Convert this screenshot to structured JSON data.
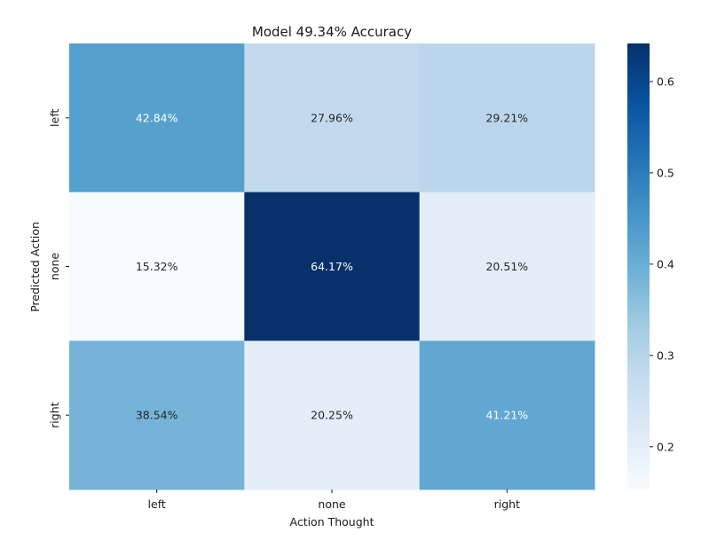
{
  "chart_data": {
    "type": "heatmap",
    "title": "Model 49.34% Accuracy",
    "xlabel": "Action Thought",
    "ylabel": "Predicted Action",
    "x_categories": [
      "left",
      "none",
      "right"
    ],
    "y_categories": [
      "left",
      "none",
      "right"
    ],
    "values": [
      [
        0.4284,
        0.2796,
        0.2921
      ],
      [
        0.1532,
        0.6417,
        0.2051
      ],
      [
        0.3854,
        0.2025,
        0.4121
      ]
    ],
    "cell_labels": [
      [
        "42.84%",
        "27.96%",
        "29.21%"
      ],
      [
        "15.32%",
        "64.17%",
        "20.51%"
      ],
      [
        "38.54%",
        "20.25%",
        "41.21%"
      ]
    ],
    "colormap": "Blues",
    "colorbar_range": [
      0.1532,
      0.6417
    ],
    "colorbar_ticks": [
      0.2,
      0.3,
      0.4,
      0.5,
      0.6
    ],
    "colorbar_tick_labels": [
      "0.2",
      "0.3",
      "0.4",
      "0.5",
      "0.6"
    ]
  }
}
